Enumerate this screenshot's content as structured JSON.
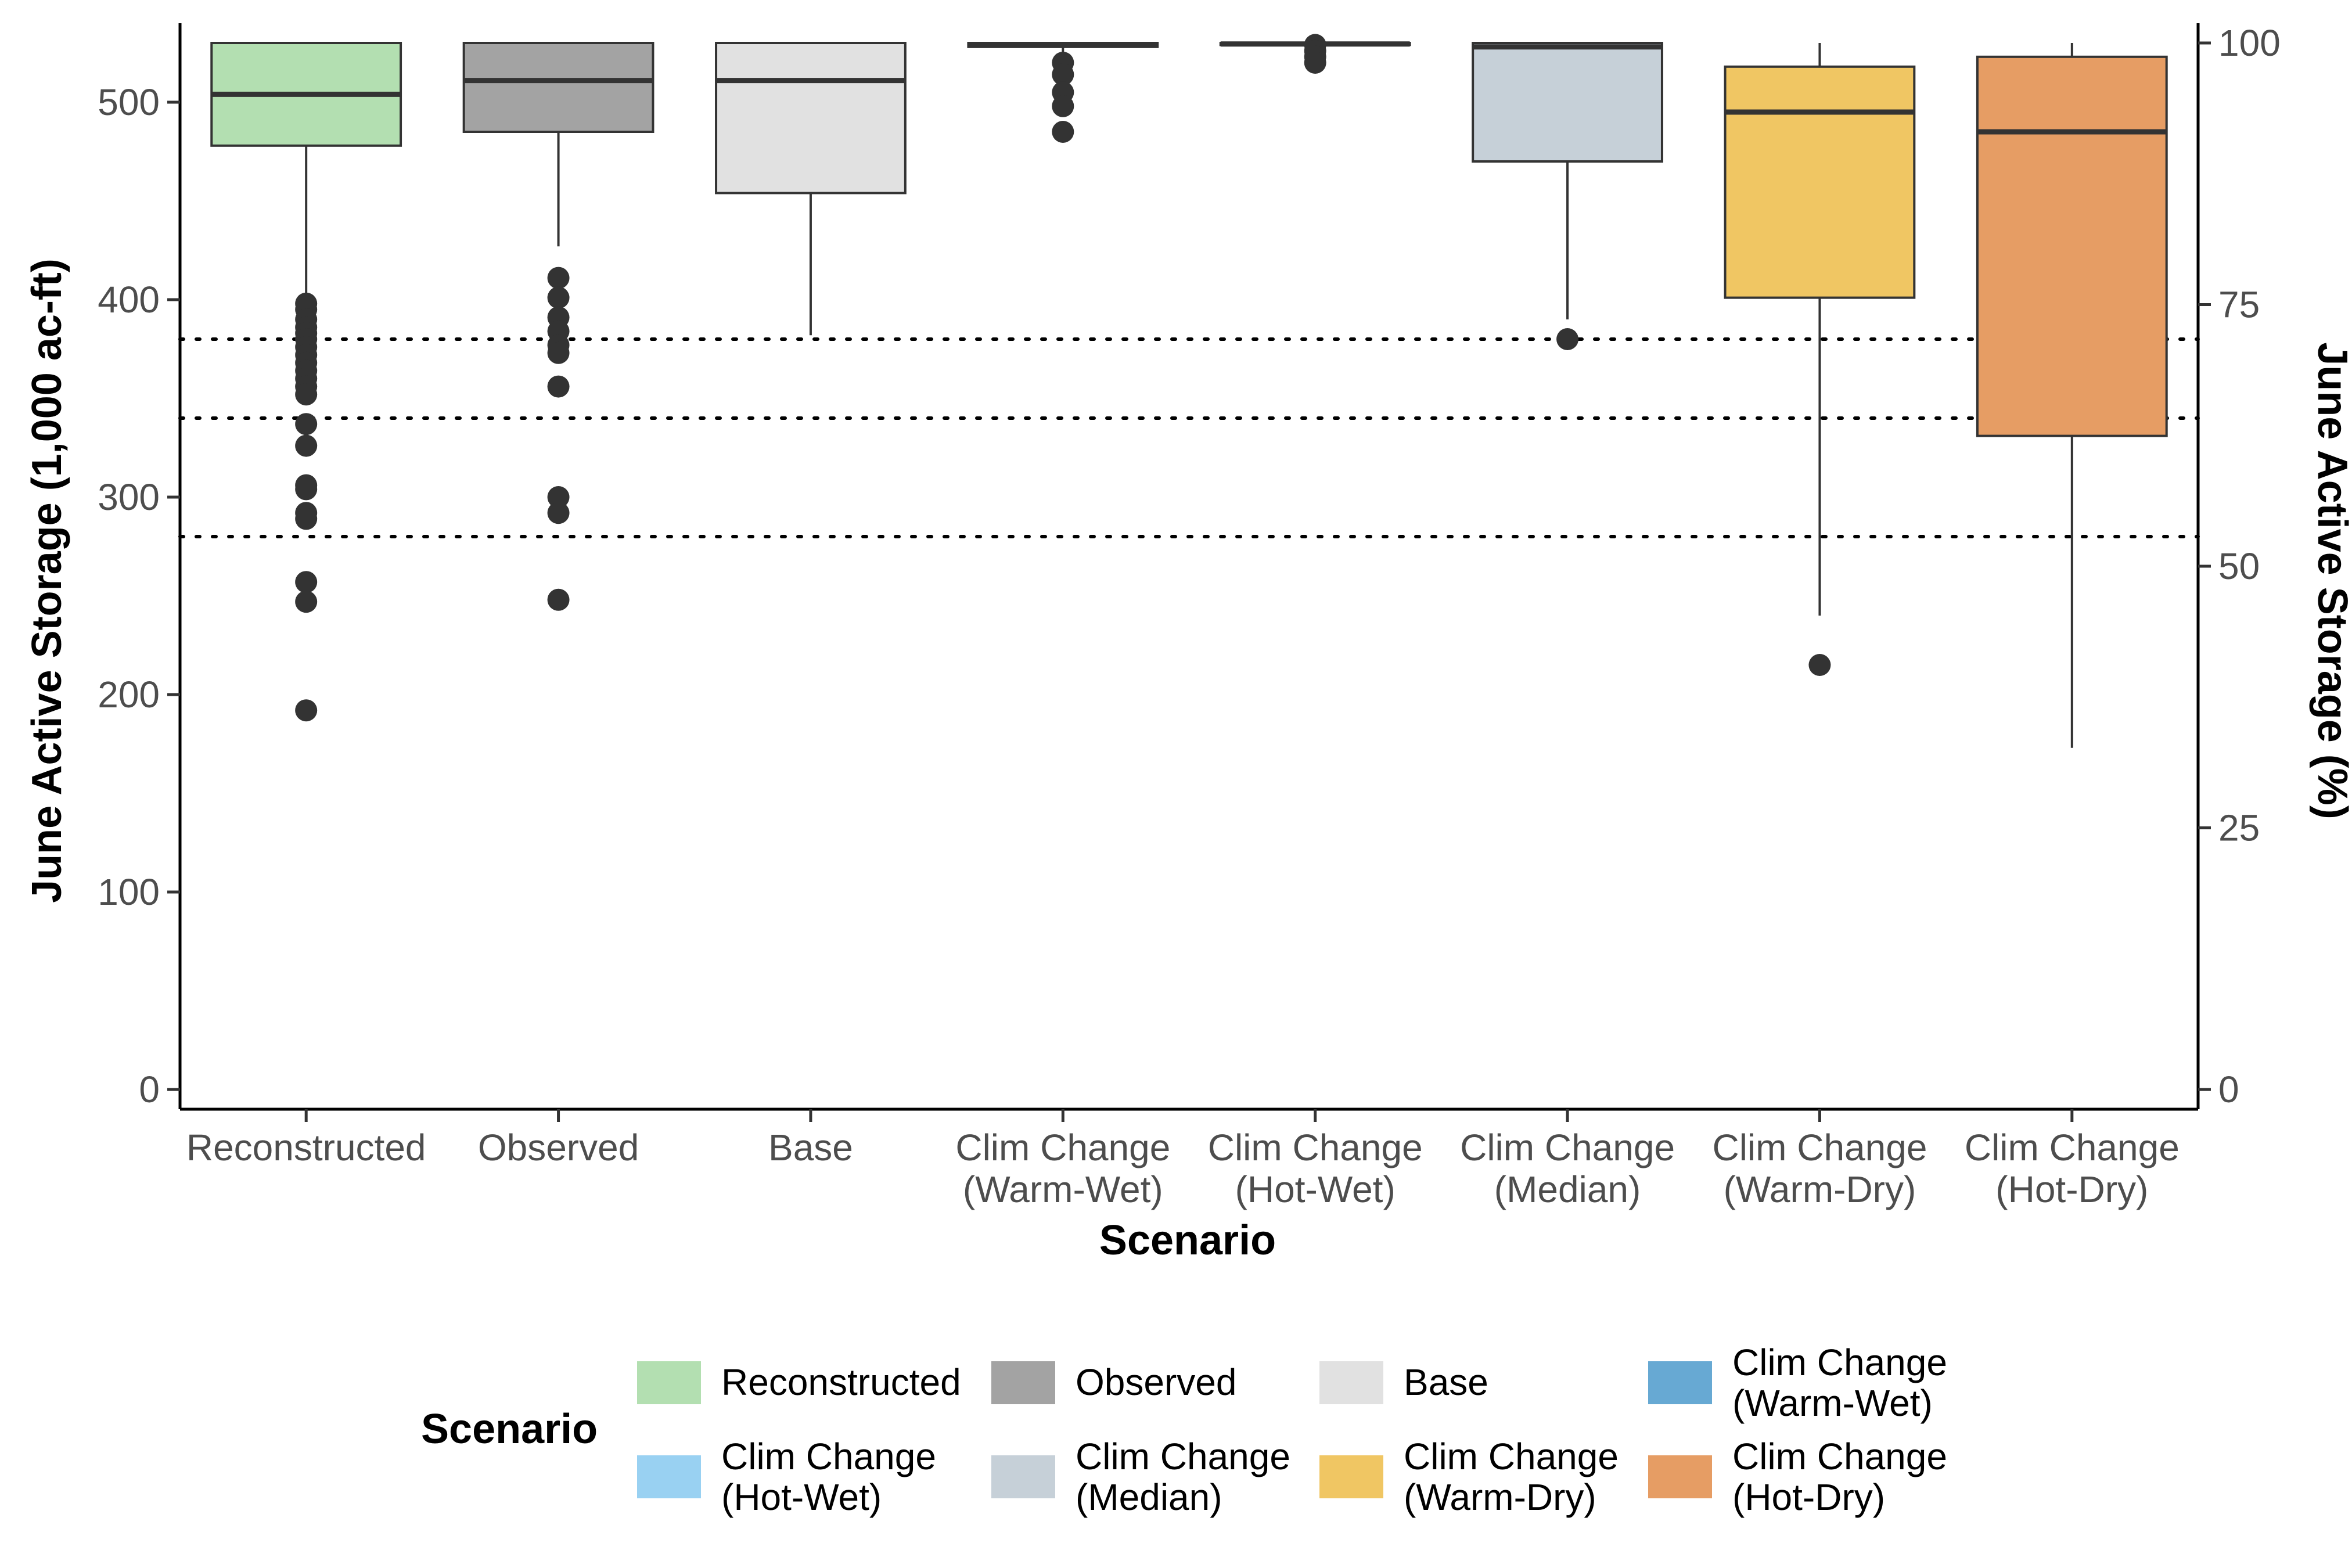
{
  "chart_data": {
    "type": "boxplot",
    "xlabel": "Scenario",
    "ylabel": "June Active Storage (1,000 ac-ft)",
    "y2label": "June Active Storage (%)",
    "ylim": [
      -10,
      540
    ],
    "y_ticks": [
      0,
      100,
      200,
      300,
      400,
      500
    ],
    "y2_ticks": [
      0,
      25,
      50,
      75,
      100
    ],
    "y2_per_percent": 5.3,
    "reference_lines": [
      380,
      340,
      280
    ],
    "grid": false,
    "legend": {
      "title": "Scenario",
      "position": "bottom",
      "entries": [
        {
          "label": [
            "Reconstructed"
          ],
          "color": "#b3dfb1"
        },
        {
          "label": [
            "Observed"
          ],
          "color": "#a3a3a3"
        },
        {
          "label": [
            "Base"
          ],
          "color": "#e1e1e1"
        },
        {
          "label": [
            "Clim Change",
            "(Warm-Wet)"
          ],
          "color": "#67a9d3"
        },
        {
          "label": [
            "Clim Change",
            "(Hot-Wet)"
          ],
          "color": "#99d1f2"
        },
        {
          "label": [
            "Clim Change",
            "(Median)"
          ],
          "color": "#c6d0d8"
        },
        {
          "label": [
            "Clim Change",
            "(Warm-Dry)"
          ],
          "color": "#f0c663"
        },
        {
          "label": [
            "Clim Change",
            "(Hot-Dry)"
          ],
          "color": "#e69d64"
        }
      ]
    },
    "categories": [
      {
        "label": [
          "Reconstructed"
        ],
        "color": "#b3dfb1",
        "min": 398,
        "q1": 478,
        "median": 504,
        "q3": 530,
        "max": 530,
        "outliers": [
          398,
          395,
          390,
          386,
          383,
          380,
          376,
          372,
          368,
          364,
          360,
          356,
          352,
          337,
          326,
          306,
          304,
          292,
          289,
          257,
          247,
          192
        ]
      },
      {
        "label": [
          "Observed"
        ],
        "color": "#a3a3a3",
        "min": 427,
        "q1": 485,
        "median": 511,
        "q3": 530,
        "max": 530,
        "outliers": [
          411,
          401,
          391,
          384,
          377,
          373,
          356,
          300,
          292,
          248
        ]
      },
      {
        "label": [
          "Base"
        ],
        "color": "#e1e1e1",
        "min": 382,
        "q1": 454,
        "median": 511,
        "q3": 530,
        "max": 530,
        "outliers": []
      },
      {
        "label": [
          "Clim Change",
          "(Warm-Wet)"
        ],
        "color": "#67a9d3",
        "min": 525,
        "q1": 528,
        "median": 529,
        "q3": 530,
        "max": 530,
        "outliers": [
          520,
          514,
          505,
          498,
          485
        ]
      },
      {
        "label": [
          "Clim Change",
          "(Hot-Wet)"
        ],
        "color": "#99d1f2",
        "min": 527,
        "q1": 529,
        "median": 529.5,
        "q3": 530,
        "max": 530,
        "outliers": [
          529,
          526,
          523,
          520
        ]
      },
      {
        "label": [
          "Clim Change",
          "(Median)"
        ],
        "color": "#c6d0d8",
        "min": 390,
        "q1": 470,
        "median": 528,
        "q3": 530,
        "max": 530,
        "outliers": [
          380
        ]
      },
      {
        "label": [
          "Clim Change",
          "(Warm-Dry)"
        ],
        "color": "#f0c663",
        "min": 240,
        "q1": 401,
        "median": 495,
        "q3": 518,
        "max": 530,
        "outliers": [
          215
        ]
      },
      {
        "label": [
          "Clim Change",
          "(Hot-Dry)"
        ],
        "color": "#e69d64",
        "min": 173,
        "q1": 331,
        "median": 485,
        "q3": 523,
        "max": 530,
        "outliers": []
      }
    ]
  }
}
